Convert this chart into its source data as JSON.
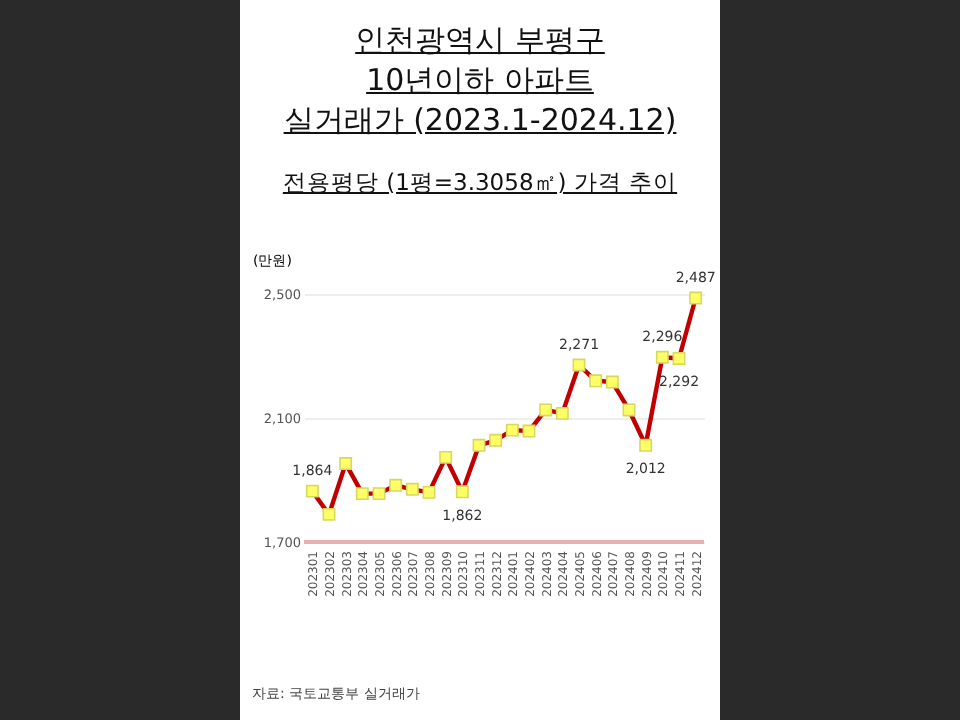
{
  "chart_data": {
    "type": "line",
    "title": "인천광역시 부평구\n10년이하 아파트\n실거래가 (2023.1-2024.12)",
    "subtitle": "전용평당 (1평=3.3058㎡) 가격 추이",
    "ylabel": "(만원)",
    "annotations": [
      "자료: 국토교통부 실거래가"
    ],
    "categories": [
      "202301",
      "202302",
      "202303",
      "202304",
      "202305",
      "202306",
      "202307",
      "202308",
      "202309",
      "202310",
      "202311",
      "202312",
      "202401",
      "202402",
      "202403",
      "202404",
      "202405",
      "202406",
      "202407",
      "202408",
      "202409",
      "202410",
      "202411",
      "202412"
    ],
    "series": [
      {
        "color": "#c00000",
        "values": [
          1864,
          1789,
          1953,
          1856,
          1856,
          1883,
          1870,
          1860,
          1973,
          1862,
          2012,
          2028,
          2061,
          2058,
          2126,
          2115,
          2271,
          2220,
          2216,
          2126,
          2012,
          2296,
          2292,
          2487
        ],
        "value_labels": [
          "1,864",
          null,
          null,
          null,
          null,
          null,
          null,
          null,
          null,
          "1,862",
          null,
          null,
          null,
          null,
          null,
          null,
          "2,271",
          null,
          null,
          null,
          "2,012",
          "2,296",
          "2,292",
          "2,487"
        ]
      }
    ],
    "ylim": [
      1700,
      2500
    ],
    "yticks": [
      {
        "value": 1700,
        "label": "1,700"
      },
      {
        "value": 2100,
        "label": "2,100"
      },
      {
        "value": 2500,
        "label": "2,500"
      }
    ],
    "grid": "y",
    "marker": "square",
    "line_style": "solid"
  }
}
